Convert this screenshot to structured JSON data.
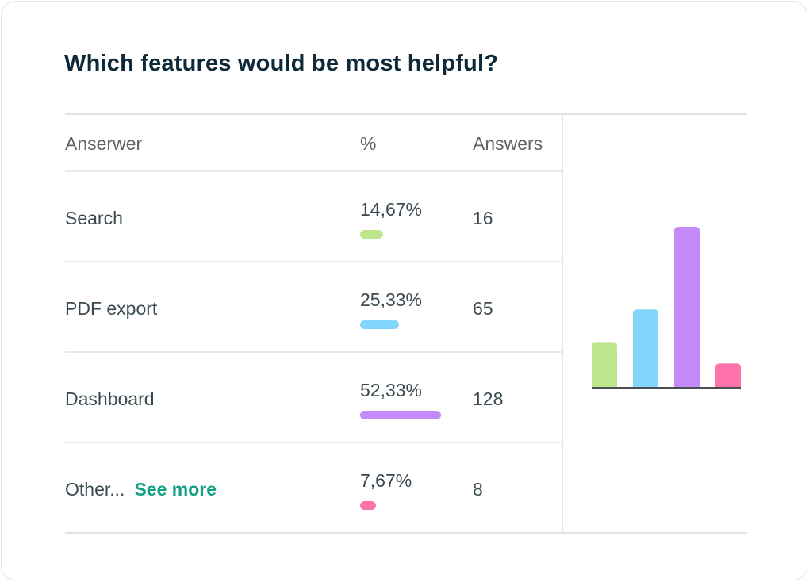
{
  "title": "Which features would be most helpful?",
  "table": {
    "headers": {
      "answer": "Anserwer",
      "percent": "%",
      "answers": "Answers"
    },
    "rows": [
      {
        "label": "Search",
        "percent_text": "14,67%",
        "percent": 14.67,
        "count": "16",
        "color": "#bfe68c"
      },
      {
        "label": "PDF export",
        "percent_text": "25,33%",
        "percent": 25.33,
        "count": "65",
        "color": "#84d5fb"
      },
      {
        "label": "Dashboard",
        "percent_text": "52,33%",
        "percent": 52.33,
        "count": "128",
        "color": "#c48af8"
      },
      {
        "label": "Other...",
        "link": "See more",
        "percent_text": "7,67%",
        "percent": 7.67,
        "count": "8",
        "color": "#fd72a9"
      }
    ]
  },
  "chart_data": {
    "type": "bar",
    "categories": [
      "Search",
      "PDF export",
      "Dashboard",
      "Other..."
    ],
    "values": [
      14.67,
      25.33,
      52.33,
      7.67
    ],
    "colors": [
      "#bfe68c",
      "#84d5fb",
      "#c48af8",
      "#fd72a9"
    ],
    "ylim": [
      0,
      52.33
    ],
    "grid": false,
    "legend": "none"
  }
}
